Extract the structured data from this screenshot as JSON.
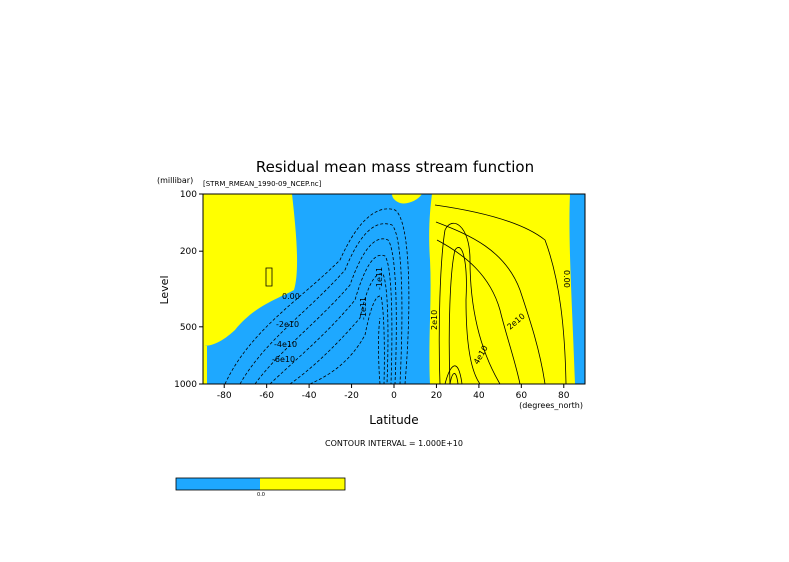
{
  "chart_data": {
    "type": "contour",
    "title": "Residual mean mass stream function",
    "subtitle": "[STRM_RMEAN_1990-09_NCEP.nc]",
    "x_label": "Latitude",
    "x_units": "(degrees_north)",
    "y_label": "Level",
    "y_units": "(millibar)",
    "xlim": [
      -90,
      90
    ],
    "xticks": [
      -80,
      -60,
      -40,
      -20,
      0,
      20,
      40,
      60,
      80
    ],
    "ylim": [
      100,
      1000
    ],
    "yticks": [
      100,
      200,
      500,
      1000
    ],
    "y_log_scale": true,
    "fill_colors": [
      "#1ea8ff",
      "#ffff00"
    ],
    "contour_labels": [
      "0.00",
      "-2e10",
      "-4e10",
      "-6e10",
      "-1e11",
      "-1e11",
      "2e10",
      "4e10",
      "2e10",
      "0.00"
    ],
    "footnote": "CONTOUR INTERVAL = 1.000E+10",
    "colorbar_labels": [
      "0.0"
    ]
  }
}
